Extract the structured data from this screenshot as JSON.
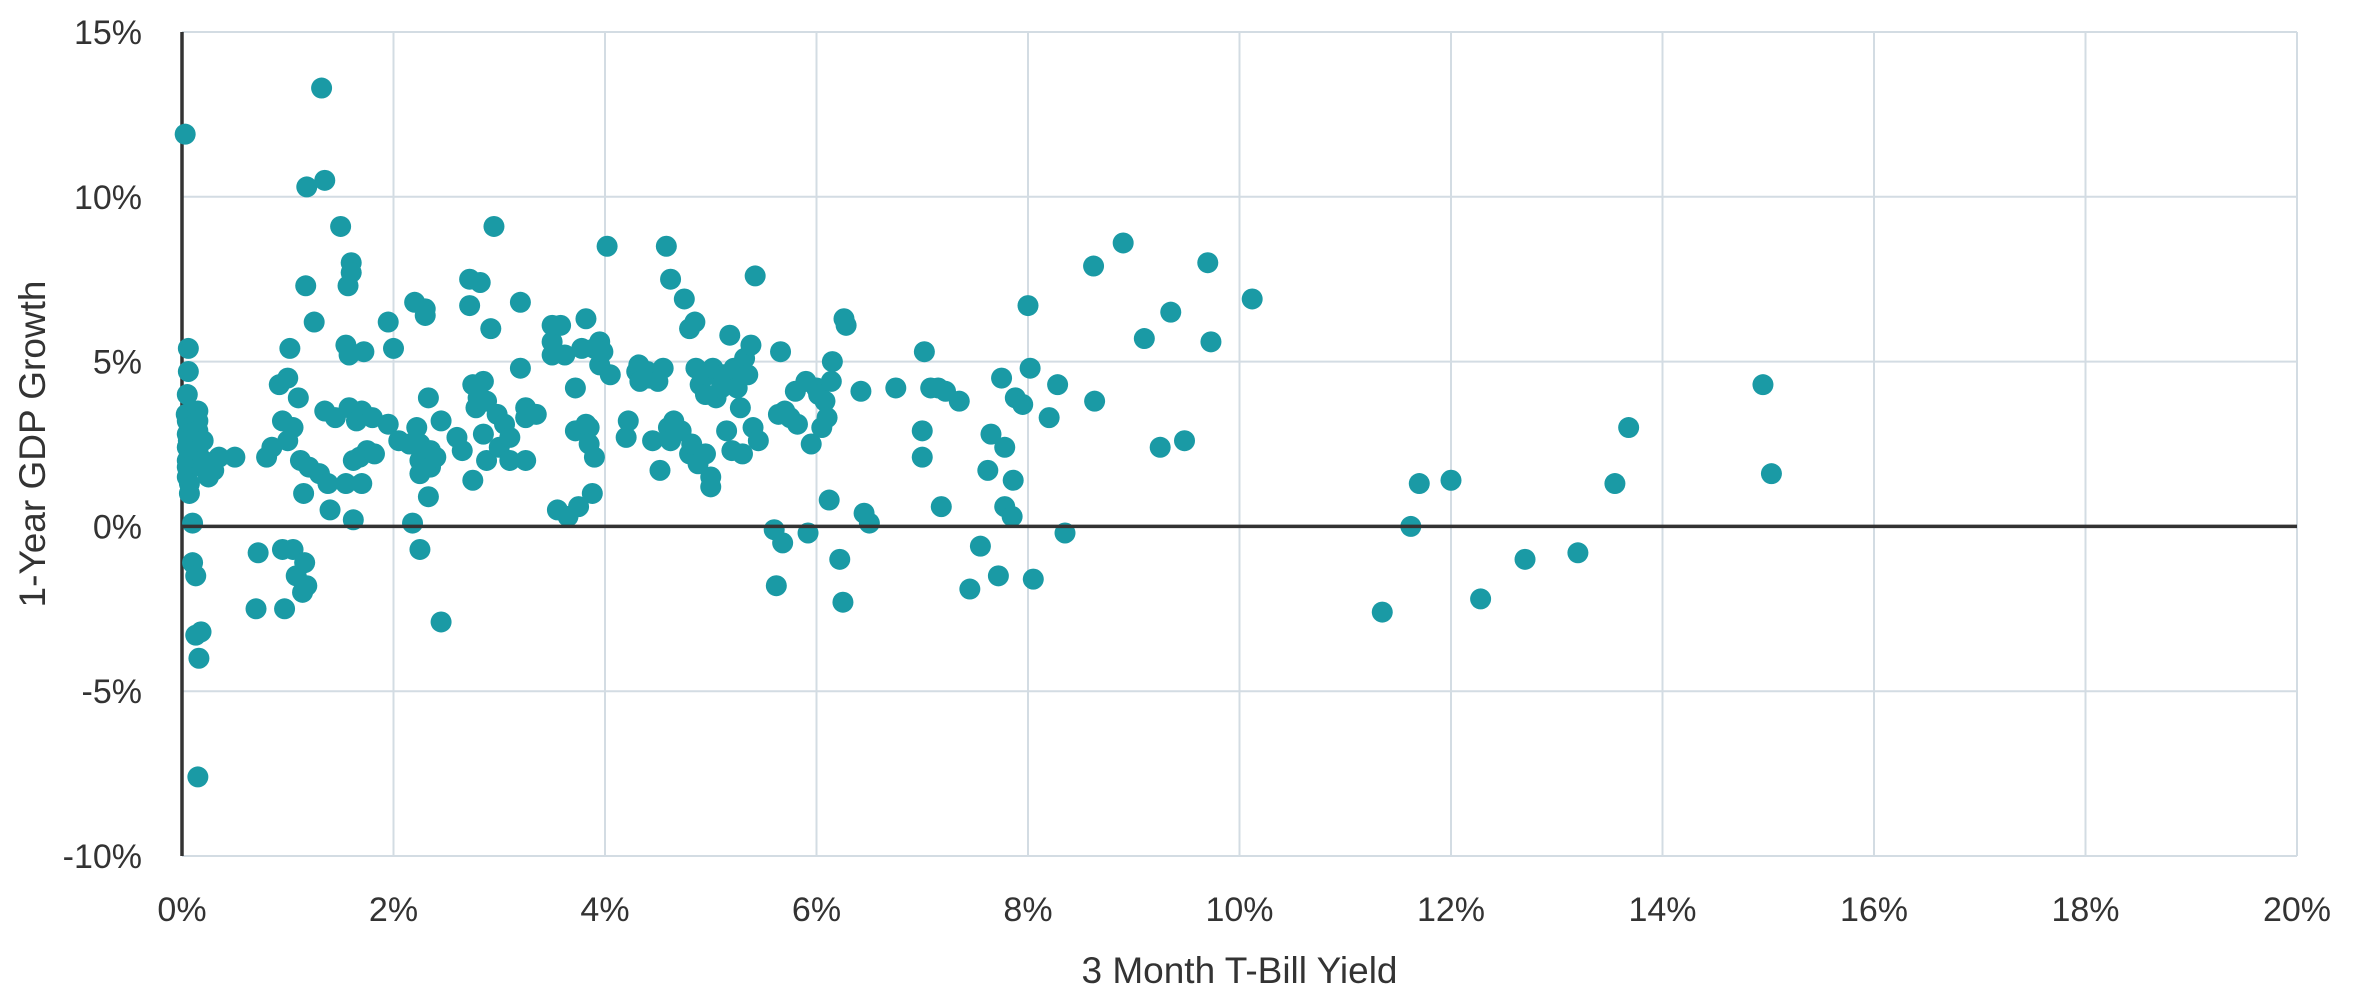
{
  "chart_data": {
    "type": "scatter",
    "xlabel": "3 Month T-Bill Yield",
    "ylabel": "1-Year GDP Growth",
    "xlim": [
      0,
      20
    ],
    "ylim": [
      -10,
      15
    ],
    "x_ticks": [
      0,
      2,
      4,
      6,
      8,
      10,
      12,
      14,
      16,
      18,
      20
    ],
    "y_ticks": [
      -10,
      -5,
      0,
      5,
      10,
      15
    ],
    "x_tick_labels": [
      "0%",
      "2%",
      "4%",
      "6%",
      "8%",
      "10%",
      "12%",
      "14%",
      "16%",
      "18%",
      "20%"
    ],
    "y_tick_labels": [
      "-10%",
      "-5%",
      "0%",
      "5%",
      "10%",
      "15%"
    ],
    "grid": true,
    "colors": {
      "marker": "#1a9aa5",
      "grid": "#d3dce3",
      "axis": "#333333",
      "text": "#333333"
    },
    "series": [
      {
        "points": [
          [
            0.03,
            11.9
          ],
          [
            0.06,
            5.4
          ],
          [
            0.06,
            4.7
          ],
          [
            0.05,
            4.0
          ],
          [
            0.04,
            3.4
          ],
          [
            0.05,
            3.2
          ],
          [
            0.07,
            3.0
          ],
          [
            0.05,
            2.8
          ],
          [
            0.06,
            2.6
          ],
          [
            0.05,
            2.4
          ],
          [
            0.07,
            2.2
          ],
          [
            0.05,
            2.0
          ],
          [
            0.05,
            1.8
          ],
          [
            0.05,
            1.5
          ],
          [
            0.07,
            1.3
          ],
          [
            0.07,
            1.0
          ],
          [
            0.1,
            0.1
          ],
          [
            0.1,
            -1.1
          ],
          [
            0.13,
            -1.5
          ],
          [
            0.13,
            -3.3
          ],
          [
            0.18,
            -3.2
          ],
          [
            0.16,
            -4.0
          ],
          [
            0.15,
            -7.6
          ],
          [
            0.15,
            3.5
          ],
          [
            0.15,
            3.2
          ],
          [
            0.15,
            2.9
          ],
          [
            0.2,
            2.6
          ],
          [
            0.15,
            2.3
          ],
          [
            0.2,
            2.0
          ],
          [
            0.2,
            1.8
          ],
          [
            0.25,
            1.5
          ],
          [
            0.3,
            1.7
          ],
          [
            0.35,
            2.1
          ],
          [
            0.5,
            2.1
          ],
          [
            0.7,
            -2.5
          ],
          [
            0.72,
            -0.8
          ],
          [
            0.8,
            2.1
          ],
          [
            0.85,
            2.4
          ],
          [
            0.92,
            4.3
          ],
          [
            0.95,
            3.2
          ],
          [
            0.95,
            -0.7
          ],
          [
            0.97,
            -2.5
          ],
          [
            1.0,
            4.5
          ],
          [
            1.0,
            2.6
          ],
          [
            1.02,
            5.4
          ],
          [
            1.05,
            3.0
          ],
          [
            1.05,
            -0.7
          ],
          [
            1.08,
            -1.5
          ],
          [
            1.1,
            3.9
          ],
          [
            1.12,
            2.0
          ],
          [
            1.14,
            -2.0
          ],
          [
            1.15,
            1.0
          ],
          [
            1.16,
            -1.1
          ],
          [
            1.17,
            7.3
          ],
          [
            1.18,
            10.3
          ],
          [
            1.18,
            -1.8
          ],
          [
            1.2,
            1.8
          ],
          [
            1.25,
            6.2
          ],
          [
            1.3,
            1.6
          ],
          [
            1.32,
            13.3
          ],
          [
            1.35,
            10.5
          ],
          [
            1.35,
            3.5
          ],
          [
            1.38,
            1.3
          ],
          [
            1.4,
            0.5
          ],
          [
            1.45,
            3.3
          ],
          [
            1.5,
            9.1
          ],
          [
            1.55,
            5.5
          ],
          [
            1.55,
            1.3
          ],
          [
            1.57,
            7.3
          ],
          [
            1.58,
            3.6
          ],
          [
            1.58,
            5.2
          ],
          [
            1.6,
            8.0
          ],
          [
            1.6,
            7.7
          ],
          [
            1.62,
            2.0
          ],
          [
            1.62,
            0.2
          ],
          [
            1.65,
            3.2
          ],
          [
            1.68,
            2.1
          ],
          [
            1.7,
            1.3
          ],
          [
            1.7,
            3.5
          ],
          [
            1.72,
            5.3
          ],
          [
            1.75,
            2.3
          ],
          [
            1.8,
            3.3
          ],
          [
            1.82,
            2.2
          ],
          [
            1.95,
            6.2
          ],
          [
            1.95,
            3.1
          ],
          [
            2.0,
            5.4
          ],
          [
            2.05,
            2.6
          ],
          [
            2.15,
            2.5
          ],
          [
            2.18,
            0.1
          ],
          [
            2.2,
            6.8
          ],
          [
            2.22,
            3.0
          ],
          [
            2.25,
            2.5
          ],
          [
            2.25,
            2.0
          ],
          [
            2.25,
            1.6
          ],
          [
            2.25,
            -0.7
          ],
          [
            2.3,
            6.6
          ],
          [
            2.3,
            6.4
          ],
          [
            2.33,
            0.9
          ],
          [
            2.33,
            3.9
          ],
          [
            2.35,
            2.3
          ],
          [
            2.35,
            1.8
          ],
          [
            2.4,
            2.1
          ],
          [
            2.45,
            3.2
          ],
          [
            2.45,
            -2.9
          ],
          [
            2.6,
            2.7
          ],
          [
            2.65,
            2.3
          ],
          [
            2.72,
            7.5
          ],
          [
            2.72,
            6.7
          ],
          [
            2.75,
            4.3
          ],
          [
            2.75,
            1.4
          ],
          [
            2.78,
            3.6
          ],
          [
            2.8,
            3.9
          ],
          [
            2.82,
            7.4
          ],
          [
            2.85,
            4.4
          ],
          [
            2.85,
            2.8
          ],
          [
            2.88,
            3.8
          ],
          [
            2.88,
            2.0
          ],
          [
            2.92,
            6.0
          ],
          [
            2.95,
            9.1
          ],
          [
            2.98,
            3.4
          ],
          [
            3.0,
            2.4
          ],
          [
            3.05,
            3.1
          ],
          [
            3.1,
            2.0
          ],
          [
            3.1,
            2.7
          ],
          [
            3.2,
            6.8
          ],
          [
            3.2,
            4.8
          ],
          [
            3.25,
            3.6
          ],
          [
            3.25,
            2.0
          ],
          [
            3.25,
            3.3
          ],
          [
            3.35,
            3.4
          ],
          [
            3.5,
            5.2
          ],
          [
            3.5,
            5.6
          ],
          [
            3.5,
            6.1
          ],
          [
            3.55,
            0.5
          ],
          [
            3.58,
            6.1
          ],
          [
            3.62,
            5.2
          ],
          [
            3.65,
            0.3
          ],
          [
            3.72,
            4.2
          ],
          [
            3.72,
            2.9
          ],
          [
            3.75,
            0.6
          ],
          [
            3.78,
            5.4
          ],
          [
            3.82,
            6.3
          ],
          [
            3.82,
            3.1
          ],
          [
            3.85,
            3.0
          ],
          [
            3.85,
            2.5
          ],
          [
            3.88,
            1.0
          ],
          [
            3.9,
            5.4
          ],
          [
            3.9,
            2.1
          ],
          [
            3.95,
            5.6
          ],
          [
            3.95,
            4.9
          ],
          [
            3.98,
            5.3
          ],
          [
            4.02,
            8.5
          ],
          [
            4.05,
            4.6
          ],
          [
            4.2,
            2.7
          ],
          [
            4.22,
            3.2
          ],
          [
            4.3,
            4.7
          ],
          [
            4.32,
            4.9
          ],
          [
            4.33,
            4.4
          ],
          [
            4.4,
            4.7
          ],
          [
            4.42,
            4.5
          ],
          [
            4.45,
            2.6
          ],
          [
            4.5,
            4.4
          ],
          [
            4.52,
            1.7
          ],
          [
            4.55,
            4.8
          ],
          [
            4.58,
            8.5
          ],
          [
            4.6,
            3.0
          ],
          [
            4.62,
            7.5
          ],
          [
            4.62,
            2.6
          ],
          [
            4.65,
            3.2
          ],
          [
            4.72,
            2.9
          ],
          [
            4.75,
            6.9
          ],
          [
            4.8,
            2.2
          ],
          [
            4.8,
            6.0
          ],
          [
            4.82,
            2.5
          ],
          [
            4.85,
            6.2
          ],
          [
            4.86,
            4.8
          ],
          [
            4.88,
            1.9
          ],
          [
            4.9,
            4.3
          ],
          [
            4.95,
            2.2
          ],
          [
            4.95,
            4.0
          ],
          [
            4.97,
            4.6
          ],
          [
            5.0,
            1.5
          ],
          [
            5.0,
            1.2
          ],
          [
            5.02,
            4.8
          ],
          [
            5.05,
            3.9
          ],
          [
            5.1,
            4.2
          ],
          [
            5.12,
            4.6
          ],
          [
            5.15,
            2.9
          ],
          [
            5.18,
            5.8
          ],
          [
            5.2,
            2.3
          ],
          [
            5.22,
            4.8
          ],
          [
            5.25,
            4.2
          ],
          [
            5.28,
            3.6
          ],
          [
            5.3,
            2.2
          ],
          [
            5.32,
            5.1
          ],
          [
            5.35,
            4.6
          ],
          [
            5.38,
            5.5
          ],
          [
            5.4,
            3.0
          ],
          [
            5.42,
            7.6
          ],
          [
            5.45,
            2.6
          ],
          [
            5.6,
            -0.1
          ],
          [
            5.62,
            -1.8
          ],
          [
            5.64,
            3.4
          ],
          [
            5.66,
            5.3
          ],
          [
            5.68,
            -0.5
          ],
          [
            5.7,
            3.5
          ],
          [
            5.75,
            3.3
          ],
          [
            5.8,
            4.1
          ],
          [
            5.82,
            3.1
          ],
          [
            5.9,
            4.4
          ],
          [
            5.92,
            -0.2
          ],
          [
            5.95,
            2.5
          ],
          [
            6.0,
            4.2
          ],
          [
            6.02,
            4.0
          ],
          [
            6.05,
            3.0
          ],
          [
            6.08,
            3.8
          ],
          [
            6.1,
            3.3
          ],
          [
            6.12,
            0.8
          ],
          [
            6.14,
            4.4
          ],
          [
            6.15,
            5.0
          ],
          [
            6.22,
            -1.0
          ],
          [
            6.25,
            -2.3
          ],
          [
            6.26,
            6.3
          ],
          [
            6.28,
            6.1
          ],
          [
            6.42,
            4.1
          ],
          [
            6.45,
            0.4
          ],
          [
            6.5,
            0.1
          ],
          [
            6.75,
            4.2
          ],
          [
            7.0,
            2.9
          ],
          [
            7.0,
            2.1
          ],
          [
            7.02,
            5.3
          ],
          [
            7.08,
            4.2
          ],
          [
            7.15,
            4.2
          ],
          [
            7.18,
            0.6
          ],
          [
            7.22,
            4.1
          ],
          [
            7.35,
            3.8
          ],
          [
            7.45,
            -1.9
          ],
          [
            7.55,
            -0.6
          ],
          [
            7.62,
            1.7
          ],
          [
            7.65,
            2.8
          ],
          [
            7.72,
            -1.5
          ],
          [
            7.75,
            4.5
          ],
          [
            7.78,
            0.6
          ],
          [
            7.78,
            2.4
          ],
          [
            7.85,
            0.3
          ],
          [
            7.86,
            1.4
          ],
          [
            7.88,
            3.9
          ],
          [
            7.95,
            3.7
          ],
          [
            8.0,
            6.7
          ],
          [
            8.02,
            4.8
          ],
          [
            8.05,
            -1.6
          ],
          [
            8.2,
            3.3
          ],
          [
            8.28,
            4.3
          ],
          [
            8.35,
            -0.2
          ],
          [
            8.62,
            7.9
          ],
          [
            8.63,
            3.8
          ],
          [
            8.9,
            8.6
          ],
          [
            9.1,
            5.7
          ],
          [
            9.25,
            2.4
          ],
          [
            9.35,
            6.5
          ],
          [
            9.48,
            2.6
          ],
          [
            9.7,
            8.0
          ],
          [
            9.73,
            5.6
          ],
          [
            10.12,
            6.9
          ],
          [
            11.35,
            -2.6
          ],
          [
            11.62,
            0.0
          ],
          [
            11.7,
            1.3
          ],
          [
            12.0,
            1.4
          ],
          [
            12.28,
            -2.2
          ],
          [
            12.7,
            -1.0
          ],
          [
            13.2,
            -0.8
          ],
          [
            13.55,
            1.3
          ],
          [
            13.68,
            3.0
          ],
          [
            14.95,
            4.3
          ],
          [
            15.03,
            1.6
          ]
        ]
      }
    ]
  }
}
